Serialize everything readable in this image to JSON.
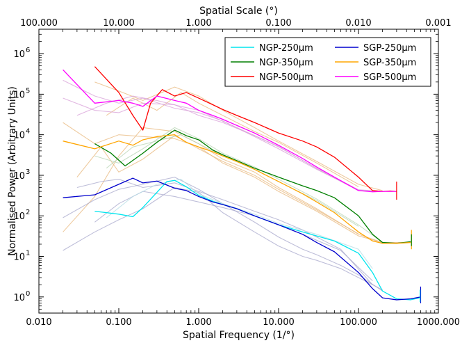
{
  "chart_data": {
    "type": "line",
    "xlabel": "Spatial Frequency (1/°)",
    "ylabel": "Normalised Power (Arbitrary Units)",
    "top_xlabel": "Spatial Scale (°)",
    "x_scale": "log",
    "y_scale": "log",
    "xlim": [
      0.01,
      1000
    ],
    "ylim": [
      0.4,
      4000000
    ],
    "x_ticks": [
      0.01,
      0.1,
      1,
      10,
      100,
      1000
    ],
    "x_tick_labels": [
      "0.010",
      "0.100",
      "1.000",
      "10.000",
      "100.000",
      "1000.000"
    ],
    "top_ticks": [
      100,
      10,
      1,
      0.1,
      0.01,
      0.001
    ],
    "top_tick_labels": [
      "100.000",
      "10.000",
      "1.000",
      "0.100",
      "0.010",
      "0.001"
    ],
    "y_ticks": [
      1,
      10,
      100,
      1000,
      10000,
      100000,
      1000000
    ],
    "y_tick_exponents": [
      "0",
      "1",
      "2",
      "3",
      "4",
      "5",
      "6"
    ],
    "y_tick_base": "10",
    "legend_position": "top-right",
    "series": [
      {
        "name": "NGP-250μm",
        "color": "#00e5ee",
        "x": [
          0.05,
          0.1,
          0.15,
          0.2,
          0.3,
          0.4,
          0.5,
          0.7,
          1,
          1.5,
          2,
          3,
          5,
          10,
          20,
          30,
          50,
          100,
          150,
          200,
          300,
          450,
          580
        ],
        "y": [
          130,
          110,
          95,
          160,
          380,
          700,
          750,
          520,
          320,
          230,
          190,
          150,
          100,
          60,
          40,
          32,
          24,
          12,
          4,
          1.4,
          0.9,
          0.85,
          0.95
        ]
      },
      {
        "name": "NGP-350μm",
        "color": "#007f00",
        "x": [
          0.05,
          0.08,
          0.12,
          0.2,
          0.3,
          0.5,
          0.7,
          1,
          1.5,
          2,
          3,
          5,
          10,
          20,
          30,
          50,
          100,
          150,
          200,
          300,
          450
        ],
        "y": [
          6000,
          3500,
          1700,
          3500,
          6500,
          13000,
          9500,
          7500,
          4200,
          3200,
          2300,
          1500,
          900,
          550,
          420,
          280,
          100,
          35,
          22,
          21,
          23
        ]
      },
      {
        "name": "NGP-500μm",
        "color": "#ff0000",
        "x": [
          0.05,
          0.1,
          0.15,
          0.2,
          0.25,
          0.35,
          0.5,
          0.7,
          1,
          1.5,
          2,
          3,
          5,
          10,
          20,
          30,
          50,
          100,
          150,
          200,
          250,
          300
        ],
        "y": [
          480000,
          110000,
          30000,
          13000,
          60000,
          130000,
          90000,
          110000,
          80000,
          55000,
          42000,
          30000,
          20000,
          11000,
          7000,
          5000,
          2800,
          900,
          420,
          400,
          410,
          400
        ]
      },
      {
        "name": "SGP-250μm",
        "color": "#0000cd",
        "x": [
          0.02,
          0.05,
          0.1,
          0.15,
          0.2,
          0.3,
          0.5,
          0.7,
          1,
          1.5,
          2,
          3,
          5,
          10,
          20,
          30,
          50,
          100,
          150,
          200,
          300,
          450,
          600
        ],
        "y": [
          280,
          330,
          600,
          850,
          650,
          720,
          480,
          420,
          300,
          220,
          190,
          150,
          100,
          60,
          35,
          22,
          13,
          4,
          1.6,
          0.95,
          0.85,
          0.9,
          1.0
        ]
      },
      {
        "name": "SGP-350μm",
        "color": "#ffa500",
        "x": [
          0.02,
          0.05,
          0.1,
          0.15,
          0.2,
          0.3,
          0.5,
          0.7,
          1,
          1.5,
          2,
          3,
          5,
          10,
          20,
          30,
          50,
          100,
          150,
          200,
          300,
          450
        ],
        "y": [
          7000,
          4500,
          7000,
          5500,
          7500,
          9000,
          10000,
          6500,
          5000,
          3800,
          3000,
          2200,
          1400,
          700,
          350,
          220,
          120,
          40,
          24,
          21,
          21,
          22
        ]
      },
      {
        "name": "SGP-500μm",
        "color": "#ff00ff",
        "x": [
          0.02,
          0.05,
          0.1,
          0.15,
          0.2,
          0.3,
          0.5,
          0.7,
          1,
          1.5,
          2,
          3,
          5,
          10,
          20,
          30,
          50,
          100,
          150,
          200,
          300
        ],
        "y": [
          400000,
          60000,
          70000,
          60000,
          50000,
          90000,
          70000,
          60000,
          40000,
          30000,
          24000,
          17000,
          11000,
          5500,
          2600,
          1600,
          900,
          420,
          390,
          400,
          400
        ]
      }
    ],
    "background_series": [
      {
        "color": "#e8b87e",
        "x": [
          0.02,
          0.05,
          0.1,
          0.2,
          0.5,
          1,
          2,
          5,
          10,
          30,
          100,
          200,
          400
        ],
        "y": [
          40,
          300,
          3000,
          15000,
          12000,
          6000,
          2500,
          1200,
          500,
          150,
          35,
          22,
          22
        ]
      },
      {
        "color": "#e8b87e",
        "x": [
          0.02,
          0.05,
          0.1,
          0.2,
          0.5,
          1,
          2,
          5,
          10,
          30,
          100,
          200,
          400
        ],
        "y": [
          20000,
          6000,
          10000,
          9000,
          8000,
          5000,
          2000,
          900,
          400,
          130,
          32,
          22,
          22
        ]
      },
      {
        "color": "#e8b87e",
        "x": [
          0.03,
          0.06,
          0.1,
          0.2,
          0.5,
          1,
          2,
          5,
          10,
          30,
          100
        ],
        "y": [
          900,
          5000,
          1200,
          2500,
          9500,
          4500,
          2200,
          1000,
          450,
          140,
          36
        ]
      },
      {
        "color": "#e8b87e",
        "x": [
          0.05,
          0.1,
          0.2,
          0.5,
          1,
          2,
          5,
          10,
          30,
          100,
          200
        ],
        "y": [
          200000,
          120000,
          70000,
          150000,
          90000,
          40000,
          15000,
          7000,
          2200,
          600,
          420
        ]
      },
      {
        "color": "#e8b87e",
        "x": [
          0.07,
          0.15,
          0.3,
          0.6,
          1,
          2,
          5,
          10,
          30,
          100
        ],
        "y": [
          30000,
          80000,
          40000,
          110000,
          60000,
          30000,
          12000,
          6500,
          2000,
          520
        ]
      },
      {
        "color": "#d8a0d8",
        "x": [
          0.02,
          0.05,
          0.1,
          0.2,
          0.5,
          1,
          2,
          5,
          10,
          30,
          100,
          200
        ],
        "y": [
          220000,
          90000,
          60000,
          80000,
          45000,
          35000,
          22000,
          9000,
          4500,
          1400,
          430,
          400
        ]
      },
      {
        "color": "#d8a0d8",
        "x": [
          0.02,
          0.05,
          0.1,
          0.2,
          0.5,
          1,
          2,
          5,
          10,
          30,
          100,
          200
        ],
        "y": [
          80000,
          40000,
          35000,
          60000,
          55000,
          30000,
          20000,
          9500,
          5000,
          1500,
          440,
          400
        ]
      },
      {
        "color": "#d8a0d8",
        "x": [
          0.03,
          0.07,
          0.15,
          0.3,
          0.6,
          1,
          3,
          10,
          30,
          100
        ],
        "y": [
          30000,
          60000,
          90000,
          70000,
          50000,
          40000,
          15000,
          5200,
          1450,
          420
        ]
      },
      {
        "color": "#b8d4b4",
        "x": [
          0.05,
          0.1,
          0.2,
          0.5,
          1,
          2,
          5,
          10,
          30,
          100,
          200
        ],
        "y": [
          3000,
          2000,
          4500,
          15000,
          8000,
          3500,
          1600,
          800,
          260,
          60,
          22
        ]
      },
      {
        "color": "#b8d4b4",
        "x": [
          0.07,
          0.15,
          0.3,
          0.6,
          1,
          2,
          5,
          10,
          30,
          100
        ],
        "y": [
          1500,
          5000,
          7000,
          10000,
          6000,
          3000,
          1400,
          700,
          240,
          55
        ]
      },
      {
        "color": "#a8a8cc",
        "x": [
          0.02,
          0.05,
          0.1,
          0.2,
          0.5,
          1,
          2,
          5,
          10,
          20,
          30,
          60,
          100,
          200
        ],
        "y": [
          14,
          40,
          80,
          150,
          500,
          380,
          120,
          40,
          18,
          10,
          8,
          5,
          3,
          1.5
        ]
      },
      {
        "color": "#a8a8cc",
        "x": [
          0.02,
          0.05,
          0.1,
          0.2,
          0.5,
          1,
          2,
          5,
          10,
          20,
          30,
          60,
          100,
          200
        ],
        "y": [
          90,
          250,
          450,
          600,
          900,
          450,
          200,
          70,
          30,
          15,
          11,
          6,
          3.5,
          1.4
        ]
      },
      {
        "color": "#a8a8cc",
        "x": [
          0.03,
          0.06,
          0.1,
          0.2,
          0.5,
          1,
          2,
          5,
          10,
          20,
          60,
          150
        ],
        "y": [
          500,
          700,
          800,
          500,
          650,
          400,
          250,
          130,
          80,
          45,
          15,
          2
        ]
      },
      {
        "color": "#a8a8cc",
        "x": [
          0.05,
          0.1,
          0.2,
          0.5,
          1,
          2,
          5,
          10,
          20,
          60,
          150
        ],
        "y": [
          70,
          200,
          400,
          300,
          220,
          160,
          100,
          60,
          35,
          14,
          2.5
        ]
      },
      {
        "color": "#b4dce4",
        "x": [
          0.07,
          0.15,
          0.3,
          0.6,
          1,
          2,
          5,
          10,
          30,
          100,
          150
        ],
        "y": [
          90,
          300,
          600,
          800,
          350,
          200,
          110,
          65,
          35,
          15,
          5
        ]
      }
    ],
    "spikes": [
      {
        "color": "#ff0000",
        "x": 300,
        "y": [
          250,
          700
        ]
      },
      {
        "color": "#ffa500",
        "x": 460,
        "y": [
          15,
          45
        ]
      },
      {
        "color": "#007f00",
        "x": 460,
        "y": [
          18,
          35
        ]
      },
      {
        "color": "#0000cd",
        "x": 600,
        "y": [
          0.7,
          1.8
        ]
      },
      {
        "color": "#00e5ee",
        "x": 590,
        "y": [
          0.75,
          1.5
        ]
      }
    ]
  }
}
